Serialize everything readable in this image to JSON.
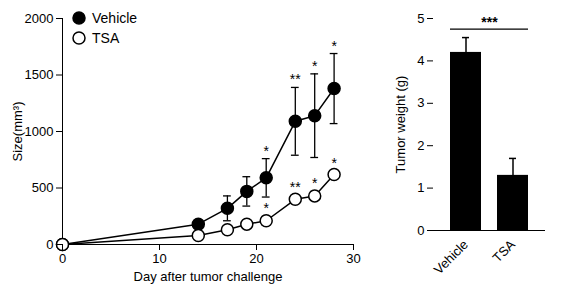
{
  "chart_data": [
    {
      "type": "line",
      "xlabel": "Day after tumor challenge",
      "ylabel": "Size(mm³)",
      "x": [
        0,
        14,
        17,
        19,
        21,
        24,
        26,
        28
      ],
      "series": [
        {
          "name": "Vehicle",
          "color": "#000000",
          "marker": "circle",
          "values": [
            0,
            180,
            320,
            470,
            590,
            1090,
            1140,
            1380
          ],
          "errors": [
            null,
            40,
            110,
            130,
            170,
            300,
            370,
            310
          ],
          "significance": [
            null,
            null,
            null,
            null,
            "*",
            "**",
            "*",
            "*"
          ]
        },
        {
          "name": "TSA",
          "color": "#000000",
          "marker": "open_circle",
          "values": [
            0,
            80,
            130,
            180,
            210,
            400,
            430,
            620
          ],
          "errors": [
            null,
            20,
            30,
            30,
            40,
            40,
            40,
            30
          ],
          "significance": [
            null,
            null,
            null,
            null,
            "*",
            "**",
            "*",
            "*"
          ]
        }
      ],
      "xlim": [
        0,
        30
      ],
      "xticks": [
        0,
        10,
        20,
        30
      ],
      "ylim": [
        0,
        2000
      ],
      "yticks": [
        0,
        500,
        1000,
        1500,
        2000
      ],
      "grid": false,
      "legend": "upper left"
    },
    {
      "type": "bar",
      "ylabel": "Tumor weight (g)",
      "categories": [
        "Vehicle",
        "TSA"
      ],
      "values": [
        4.2,
        1.3
      ],
      "errors": [
        0.35,
        0.4
      ],
      "color": "#000000",
      "ylim": [
        0,
        5
      ],
      "yticks": [
        0,
        1,
        2,
        3,
        4,
        5
      ],
      "grid": false,
      "annotations": [
        {
          "text": "***",
          "from": "Vehicle",
          "to": "TSA",
          "y": 4.75
        }
      ]
    }
  ]
}
